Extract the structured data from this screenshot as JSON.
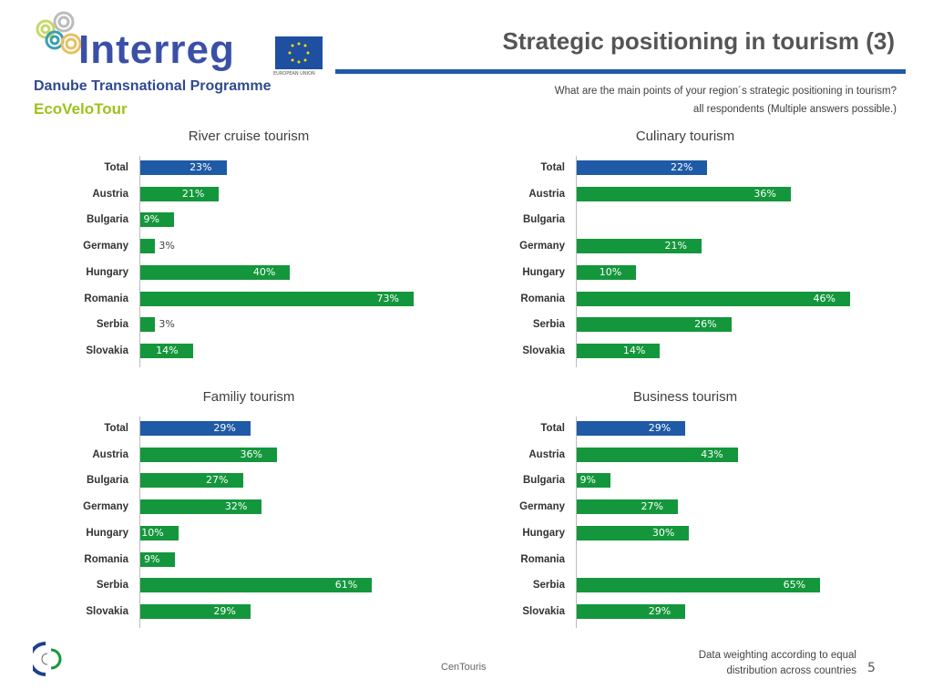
{
  "header": {
    "logo_text": "Interreg",
    "eu_label": "EUROPEAN UNION",
    "programme": "Danube Transnational Programme",
    "project": "EcoVeloTour",
    "title": "Strategic positioning in tourism (3)",
    "question": "What are the main points of your region´s strategic positioning in tourism?",
    "respondents": "all respondents (Multiple answers possible.)"
  },
  "footer": {
    "center": "CenTouris",
    "note_line1": "Data weighting according to equal",
    "note_line2": "distribution across countries",
    "page": "5"
  },
  "colors": {
    "total": "#1f5aa6",
    "country": "#14973c",
    "rule": "#1f5aa6"
  },
  "chart_data": [
    {
      "type": "bar",
      "orientation": "horizontal",
      "title": "River cruise tourism",
      "categories": [
        "Total",
        "Austria",
        "Bulgaria",
        "Germany",
        "Hungary",
        "Romania",
        "Serbia",
        "Slovakia"
      ],
      "values": [
        23,
        21,
        9,
        3,
        40,
        73,
        3,
        14
      ],
      "unit": "%",
      "xlim": [
        0,
        73
      ]
    },
    {
      "type": "bar",
      "orientation": "horizontal",
      "title": "Culinary tourism",
      "categories": [
        "Total",
        "Austria",
        "Bulgaria",
        "Germany",
        "Hungary",
        "Romania",
        "Serbia",
        "Slovakia"
      ],
      "values": [
        22,
        36,
        0,
        21,
        10,
        46,
        26,
        14
      ],
      "unit": "%",
      "xlim": [
        0,
        46
      ]
    },
    {
      "type": "bar",
      "orientation": "horizontal",
      "title": "Familiy tourism",
      "categories": [
        "Total",
        "Austria",
        "Bulgaria",
        "Germany",
        "Hungary",
        "Romania",
        "Serbia",
        "Slovakia"
      ],
      "values": [
        29,
        36,
        27,
        32,
        10,
        9,
        61,
        29
      ],
      "unit": "%",
      "xlim": [
        0,
        72
      ]
    },
    {
      "type": "bar",
      "orientation": "horizontal",
      "title": "Business tourism",
      "categories": [
        "Total",
        "Austria",
        "Bulgaria",
        "Germany",
        "Hungary",
        "Romania",
        "Serbia",
        "Slovakia"
      ],
      "values": [
        29,
        43,
        9,
        27,
        30,
        0,
        65,
        29
      ],
      "unit": "%",
      "xlim": [
        0,
        73
      ]
    }
  ]
}
